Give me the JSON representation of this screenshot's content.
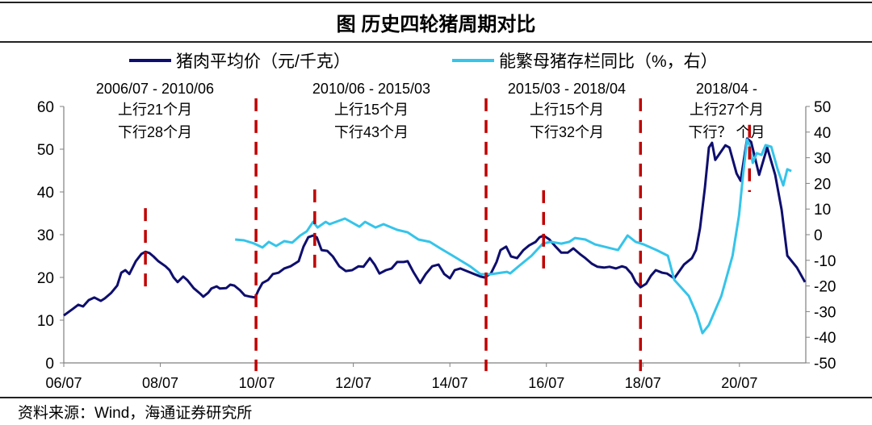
{
  "colors": {
    "price": "#0e0e6e",
    "sow": "#35c4ea",
    "divider": "#c00000",
    "axis": "#808080"
  },
  "chart_data": {
    "type": "line",
    "title": "图  历史四轮猪周期对比",
    "x_unit": "months since 2006/07",
    "xlim": [
      0,
      184.5
    ],
    "x_ticks": [
      0,
      24,
      48,
      72,
      96,
      120,
      144,
      168
    ],
    "x_tick_labels": [
      "06/07",
      "08/07",
      "10/07",
      "12/07",
      "14/07",
      "16/07",
      "18/07",
      "20/07"
    ],
    "y_left": {
      "lim": [
        0,
        60
      ],
      "ticks": [
        "0",
        "10",
        "20",
        "30",
        "40",
        "50",
        "60"
      ]
    },
    "y_right": {
      "lim": [
        -50,
        50
      ],
      "ticks": [
        "-50",
        "-40",
        "-30",
        "-20",
        "-10",
        "0",
        "10",
        "20",
        "30",
        "40",
        "50"
      ]
    },
    "legend_position": "top",
    "series": [
      {
        "name": "猪肉平均价（元/千克）",
        "axis": "left",
        "points": [
          [
            0,
            11.1
          ],
          [
            2.2,
            12.6
          ],
          [
            3.6,
            13.6
          ],
          [
            4.8,
            13.2
          ],
          [
            6.2,
            14.7
          ],
          [
            7.6,
            15.3
          ],
          [
            9.2,
            14.5
          ],
          [
            10.2,
            15.1
          ],
          [
            11.8,
            16.4
          ],
          [
            13.3,
            18.1
          ],
          [
            14.3,
            21.1
          ],
          [
            15.3,
            21.7
          ],
          [
            16.3,
            20.8
          ],
          [
            17.9,
            23.8
          ],
          [
            19.3,
            25.5
          ],
          [
            20.3,
            26.0
          ],
          [
            21.3,
            25.7
          ],
          [
            22.3,
            24.9
          ],
          [
            23.5,
            23.8
          ],
          [
            25.3,
            22.6
          ],
          [
            26.3,
            21.7
          ],
          [
            27.3,
            20.0
          ],
          [
            28.3,
            18.9
          ],
          [
            29.7,
            20.2
          ],
          [
            30.7,
            19.4
          ],
          [
            32.3,
            17.5
          ],
          [
            33.9,
            16.2
          ],
          [
            34.7,
            15.5
          ],
          [
            35.9,
            16.4
          ],
          [
            36.7,
            17.4
          ],
          [
            38.0,
            17.9
          ],
          [
            38.8,
            17.4
          ],
          [
            40.4,
            17.5
          ],
          [
            41.4,
            18.3
          ],
          [
            42.4,
            18.1
          ],
          [
            43.8,
            17.0
          ],
          [
            45.0,
            15.8
          ],
          [
            46.4,
            15.5
          ],
          [
            47.6,
            15.3
          ],
          [
            48.4,
            17.0
          ],
          [
            49.4,
            18.7
          ],
          [
            50.8,
            19.4
          ],
          [
            52.0,
            20.8
          ],
          [
            53.4,
            21.1
          ],
          [
            54.8,
            22.1
          ],
          [
            56.4,
            22.6
          ],
          [
            58.4,
            23.8
          ],
          [
            59.6,
            27.2
          ],
          [
            60.8,
            29.4
          ],
          [
            62.0,
            29.8
          ],
          [
            62.9,
            29.4
          ],
          [
            64.1,
            26.4
          ],
          [
            65.5,
            26.2
          ],
          [
            66.9,
            24.9
          ],
          [
            68.5,
            22.6
          ],
          [
            70.1,
            21.5
          ],
          [
            71.7,
            21.7
          ],
          [
            73.3,
            22.6
          ],
          [
            74.5,
            22.5
          ],
          [
            76.1,
            24.5
          ],
          [
            77.3,
            23.0
          ],
          [
            78.5,
            20.9
          ],
          [
            80.1,
            21.7
          ],
          [
            81.5,
            22.1
          ],
          [
            82.9,
            23.6
          ],
          [
            84.5,
            23.6
          ],
          [
            85.5,
            23.8
          ],
          [
            86.9,
            21.3
          ],
          [
            88.6,
            18.7
          ],
          [
            90.0,
            20.8
          ],
          [
            91.6,
            22.6
          ],
          [
            93.2,
            23.0
          ],
          [
            94.6,
            20.8
          ],
          [
            96.0,
            19.8
          ],
          [
            97.2,
            21.7
          ],
          [
            98.6,
            22.1
          ],
          [
            100.2,
            21.5
          ],
          [
            102.0,
            20.8
          ],
          [
            103.6,
            20.2
          ],
          [
            104.6,
            20.0
          ],
          [
            106.2,
            20.9
          ],
          [
            107.6,
            23.6
          ],
          [
            108.6,
            26.4
          ],
          [
            110.0,
            27.2
          ],
          [
            111.2,
            24.9
          ],
          [
            112.7,
            24.5
          ],
          [
            114.3,
            26.4
          ],
          [
            115.7,
            27.5
          ],
          [
            117.3,
            28.3
          ],
          [
            118.3,
            29.4
          ],
          [
            119.3,
            29.8
          ],
          [
            120.7,
            28.9
          ],
          [
            122.1,
            27.4
          ],
          [
            123.7,
            25.8
          ],
          [
            125.3,
            25.8
          ],
          [
            126.7,
            26.8
          ],
          [
            128.3,
            25.5
          ],
          [
            129.7,
            24.5
          ],
          [
            131.3,
            23.2
          ],
          [
            132.7,
            22.5
          ],
          [
            134.3,
            22.3
          ],
          [
            135.7,
            22.5
          ],
          [
            137.3,
            22.1
          ],
          [
            138.8,
            22.6
          ],
          [
            139.8,
            22.3
          ],
          [
            141.2,
            20.8
          ],
          [
            142.2,
            18.9
          ],
          [
            143.4,
            17.7
          ],
          [
            144.8,
            18.5
          ],
          [
            146.0,
            20.4
          ],
          [
            147.2,
            21.7
          ],
          [
            148.8,
            21.1
          ],
          [
            150.0,
            20.9
          ],
          [
            151.8,
            19.8
          ],
          [
            154.2,
            23.0
          ],
          [
            156.2,
            24.5
          ],
          [
            157.2,
            26.4
          ],
          [
            158.2,
            31.5
          ],
          [
            159.4,
            40.9
          ],
          [
            160.4,
            50.4
          ],
          [
            161.2,
            51.5
          ],
          [
            162.0,
            47.5
          ],
          [
            164.5,
            50.9
          ],
          [
            165.5,
            50.4
          ],
          [
            167.3,
            44.3
          ],
          [
            168.3,
            42.6
          ],
          [
            169.9,
            52.5
          ],
          [
            170.9,
            51.7
          ],
          [
            172.9,
            44.0
          ],
          [
            174.9,
            50.4
          ],
          [
            176.9,
            44.0
          ],
          [
            178.5,
            35.8
          ],
          [
            179.9,
            25.1
          ],
          [
            182.3,
            22.3
          ],
          [
            184.3,
            18.9
          ]
        ]
      },
      {
        "name": "能繁母猪存栏同比（%，右）",
        "axis": "right",
        "points": [
          [
            42.6,
            -1.9
          ],
          [
            44.8,
            -2.2
          ],
          [
            47.4,
            -3.5
          ],
          [
            49.4,
            -5.0
          ],
          [
            51.0,
            -2.8
          ],
          [
            52.8,
            -4.4
          ],
          [
            54.8,
            -2.5
          ],
          [
            56.8,
            -3.1
          ],
          [
            58.8,
            -0.3
          ],
          [
            60.4,
            1.3
          ],
          [
            62.0,
            5.0
          ],
          [
            63.1,
            2.8
          ],
          [
            65.1,
            5.0
          ],
          [
            66.1,
            4.1
          ],
          [
            69.9,
            6.3
          ],
          [
            73.5,
            3.1
          ],
          [
            74.9,
            5.0
          ],
          [
            77.5,
            2.8
          ],
          [
            79.5,
            4.1
          ],
          [
            82.9,
            1.9
          ],
          [
            85.5,
            0.9
          ],
          [
            88.2,
            -1.9
          ],
          [
            91.0,
            -2.8
          ],
          [
            93.6,
            -5.3
          ],
          [
            97.0,
            -8.5
          ],
          [
            101.0,
            -12.3
          ],
          [
            103.6,
            -15.4
          ],
          [
            106.2,
            -15.4
          ],
          [
            110.2,
            -14.5
          ],
          [
            111.0,
            -15.1
          ],
          [
            113.1,
            -12.3
          ],
          [
            116.3,
            -8.2
          ],
          [
            119.1,
            -3.5
          ],
          [
            121.1,
            -2.8
          ],
          [
            123.7,
            -3.5
          ],
          [
            125.7,
            -2.8
          ],
          [
            127.1,
            -1.3
          ],
          [
            129.7,
            -1.9
          ],
          [
            132.1,
            -3.8
          ],
          [
            137.8,
            -6.0
          ],
          [
            140.2,
            -0.3
          ],
          [
            142.2,
            -2.8
          ],
          [
            144.2,
            -3.8
          ],
          [
            147.4,
            -6.0
          ],
          [
            150.2,
            -8.2
          ],
          [
            151.8,
            -17.6
          ],
          [
            155.4,
            -23.9
          ],
          [
            157.4,
            -31.1
          ],
          [
            158.8,
            -38.4
          ],
          [
            160.4,
            -35.2
          ],
          [
            163.5,
            -23.9
          ],
          [
            166.3,
            -8.2
          ],
          [
            167.9,
            7.5
          ],
          [
            168.9,
            23.3
          ],
          [
            169.9,
            37.1
          ],
          [
            170.5,
            34.9
          ],
          [
            171.3,
            28.0
          ],
          [
            172.3,
            31.8
          ],
          [
            173.5,
            31.1
          ],
          [
            174.5,
            34.9
          ],
          [
            175.9,
            34.3
          ],
          [
            177.5,
            25.5
          ],
          [
            178.9,
            19.2
          ],
          [
            179.9,
            25.5
          ],
          [
            180.9,
            24.8
          ]
        ]
      }
    ],
    "cycle_dividers": [
      {
        "x": 20.3,
        "y_range": [
          16.0,
          36.2
        ]
      },
      {
        "x": 47.8,
        "y_range": [
          -1.9,
          61.9
        ]
      },
      {
        "x": 62.4,
        "y_range": [
          21.1,
          40.6
        ]
      },
      {
        "x": 105.0,
        "y_range": [
          -1.9,
          61.9
        ]
      },
      {
        "x": 119.3,
        "y_range": [
          20.8,
          40.4
        ]
      },
      {
        "x": 143.4,
        "y_range": [
          -1.9,
          61.9
        ]
      },
      {
        "x": 170.5,
        "y_range": [
          40.0,
          55.7
        ]
      }
    ],
    "annotations": [
      {
        "period": "2006/07 - 2010/06",
        "up": "上行21个月",
        "down": "下行28个月"
      },
      {
        "period": "2010/06 - 2015/03",
        "up": "上行15个月",
        "down": "下行43个月"
      },
      {
        "period": "2015/03 - 2018/04",
        "up": "上行15个月",
        "down": "下行32个月"
      },
      {
        "period": "2018/04 -",
        "up": "上行27个月",
        "down": "下行？ 个月"
      }
    ]
  },
  "source": "资料来源：Wind，海通证券研究所"
}
